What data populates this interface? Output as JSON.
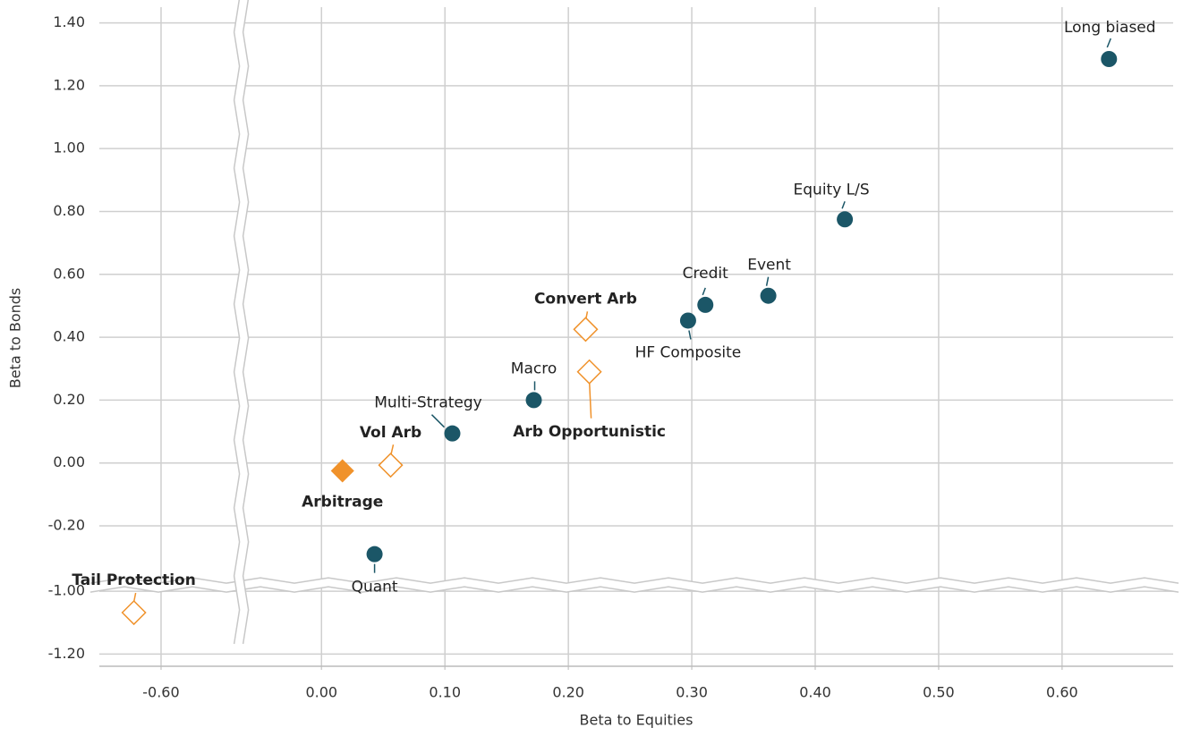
{
  "chart_data": {
    "type": "scatter",
    "xlabel": "Beta to Equities",
    "ylabel": "Beta to Bonds",
    "xlim": [
      -0.65,
      0.69
    ],
    "ylim": [
      -1.25,
      1.45
    ],
    "xbreak": [
      -0.535,
      -0.065
    ],
    "ybreak": [
      -0.98,
      -0.388
    ],
    "grid": true,
    "xticks": [
      {
        "value": -0.6,
        "label": "-0.60"
      },
      {
        "value": 0,
        "label": "0.00"
      },
      {
        "value": 0.1,
        "label": "0.10"
      },
      {
        "value": 0.2,
        "label": "0.20"
      },
      {
        "value": 0.3,
        "label": "0.30"
      },
      {
        "value": 0.4,
        "label": "0.40"
      },
      {
        "value": 0.5,
        "label": "0.50"
      },
      {
        "value": 0.6,
        "label": "0.60"
      }
    ],
    "yticks": [
      {
        "value": 1.4,
        "label": "1.40"
      },
      {
        "value": 1.2,
        "label": "1.20"
      },
      {
        "value": 1,
        "label": "1.00"
      },
      {
        "value": 0.8,
        "label": "0.80"
      },
      {
        "value": 0.6,
        "label": "0.60"
      },
      {
        "value": 0.4,
        "label": "0.40"
      },
      {
        "value": 0.2,
        "label": "0.20"
      },
      {
        "value": 0,
        "label": "0.00"
      },
      {
        "value": -0.2,
        "label": "-0.20"
      },
      {
        "value": -1,
        "label": "-1.00"
      },
      {
        "value": -1.2,
        "label": "-1.20"
      }
    ],
    "points": [
      {
        "label": "Long biased",
        "x": 0.638,
        "y": 1.285,
        "marker": "circle",
        "color": "#1b5667",
        "bold": false
      },
      {
        "label": "Equity L/S",
        "x": 0.424,
        "y": 0.775,
        "marker": "circle",
        "color": "#1b5667",
        "bold": false
      },
      {
        "label": "Event",
        "x": 0.362,
        "y": 0.532,
        "marker": "circle",
        "color": "#1b5667",
        "bold": false
      },
      {
        "label": "Credit",
        "x": 0.311,
        "y": 0.503,
        "marker": "circle",
        "color": "#1b5667",
        "bold": false
      },
      {
        "label": "HF Composite",
        "x": 0.297,
        "y": 0.453,
        "marker": "circle",
        "color": "#1b5667",
        "bold": false
      },
      {
        "label": "Convert Arb",
        "x": 0.214,
        "y": 0.425,
        "marker": "diamond-open",
        "color": "#f0922b",
        "bold": true
      },
      {
        "label": "Arb Opportunistic",
        "x": 0.217,
        "y": 0.29,
        "marker": "diamond-open",
        "color": "#f0922b",
        "bold": true
      },
      {
        "label": "Macro",
        "x": 0.172,
        "y": 0.2,
        "marker": "circle",
        "color": "#1b5667",
        "bold": false
      },
      {
        "label": "Multi-Strategy",
        "x": 0.106,
        "y": 0.094,
        "marker": "circle",
        "color": "#1b5667",
        "bold": false
      },
      {
        "label": "Vol Arb",
        "x": 0.056,
        "y": -0.007,
        "marker": "diamond-open",
        "color": "#f0922b",
        "bold": true
      },
      {
        "label": "Arbitrage",
        "x": 0.017,
        "y": -0.025,
        "marker": "diamond",
        "color": "#f0922b",
        "bold": true
      },
      {
        "label": "Quant",
        "x": 0.043,
        "y": -0.29,
        "marker": "circle",
        "color": "#1b5667",
        "bold": false
      },
      {
        "label": "Tail Protection",
        "x": -0.622,
        "y": -1.068,
        "marker": "diamond-open",
        "color": "#f0922b",
        "bold": true
      }
    ]
  }
}
